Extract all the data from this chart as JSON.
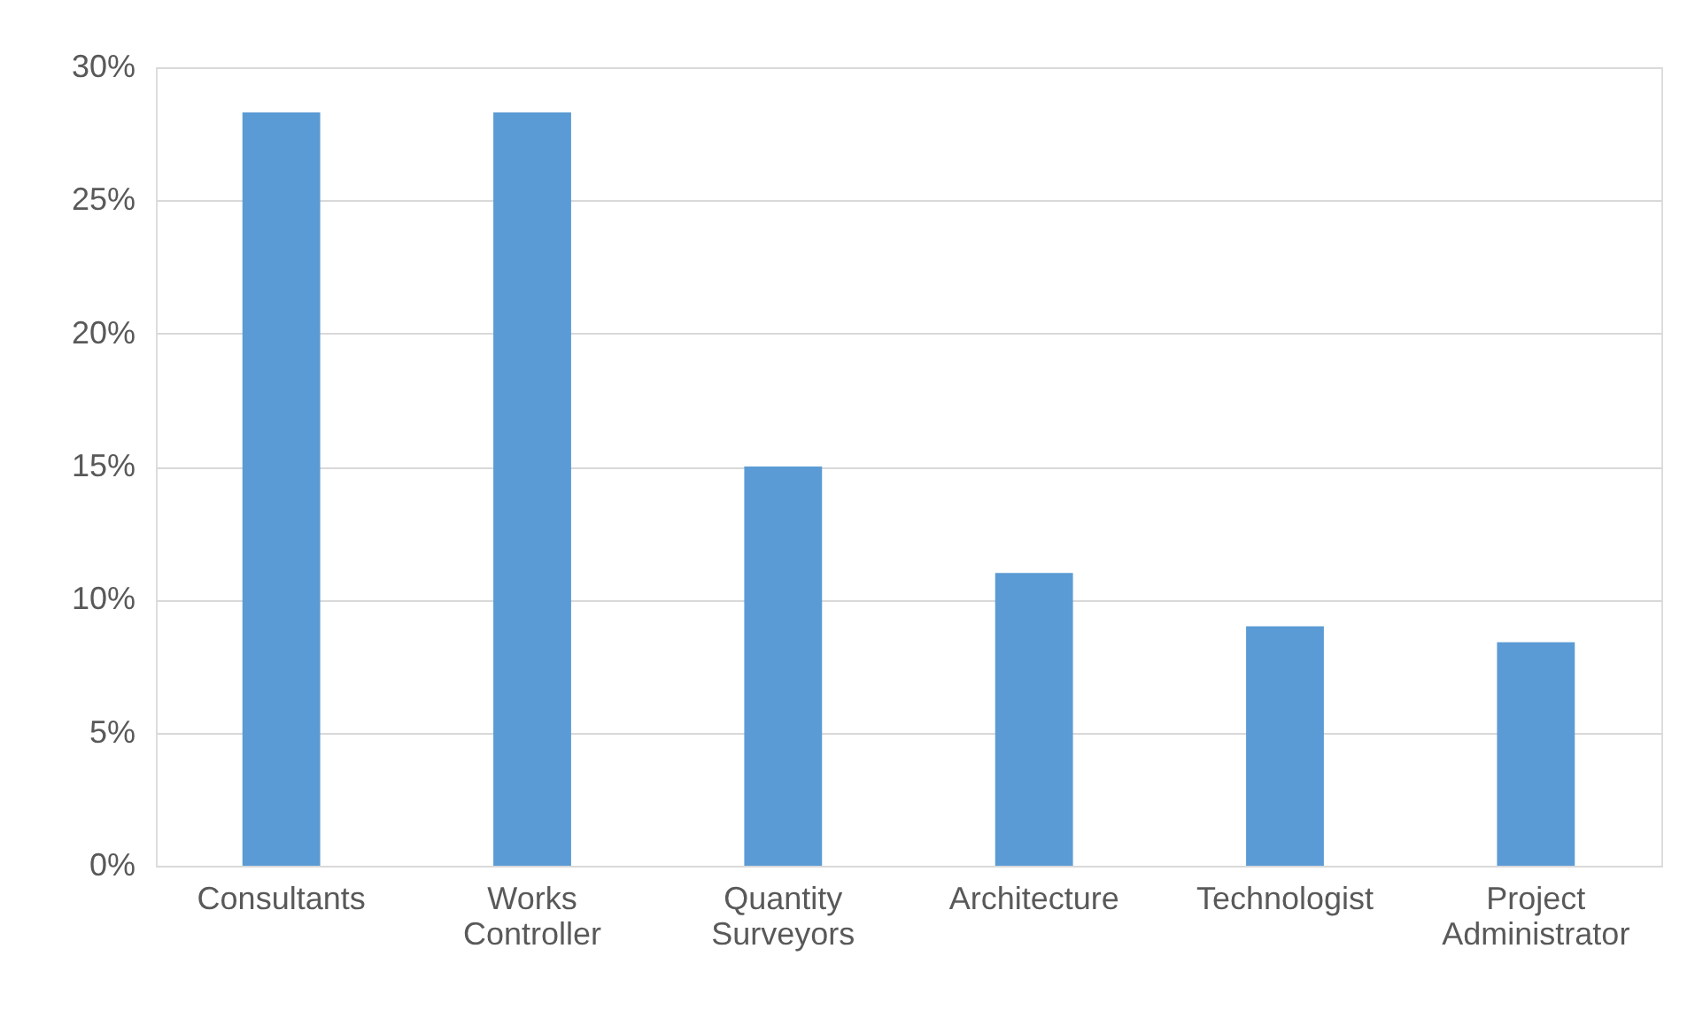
{
  "chart_data": {
    "type": "bar",
    "categories": [
      "Consultants",
      "Works Controller",
      "Quantity Surveyors",
      "Architecture",
      "Technologist",
      "Project Administrator"
    ],
    "values": [
      28.3,
      28.3,
      15,
      11,
      9,
      8.4
    ],
    "color": "#5b9bd5",
    "ylim": [
      0,
      30
    ],
    "yticks": [
      {
        "value": 0,
        "label": "0%"
      },
      {
        "value": 5,
        "label": "5%"
      },
      {
        "value": 10,
        "label": "10%"
      },
      {
        "value": 15,
        "label": "15%"
      },
      {
        "value": 20,
        "label": "20%"
      },
      {
        "value": 25,
        "label": "25%"
      },
      {
        "value": 30,
        "label": "30%"
      }
    ],
    "grid": "y"
  }
}
